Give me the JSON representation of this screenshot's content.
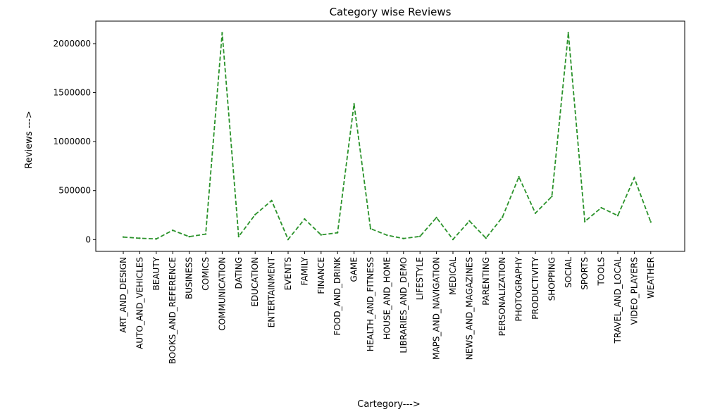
{
  "chart_data": {
    "type": "line",
    "title": "Category wise Reviews",
    "xlabel": "Cartegory--->",
    "ylabel": "Reviews --->",
    "ylim": [
      -120000,
      2230000
    ],
    "yticks": [
      0,
      500000,
      1000000,
      1500000,
      2000000
    ],
    "ytick_labels": [
      "0",
      "500000",
      "1000000",
      "1500000",
      "2000000"
    ],
    "grid": false,
    "line_style": "dashed",
    "colors": {
      "line": "#2a922a"
    },
    "categories": [
      "ART_AND_DESIGN",
      "AUTO_AND_VEHICLES",
      "BEAUTY",
      "BOOKS_AND_REFERENCE",
      "BUSINESS",
      "COMICS",
      "COMMUNICATION",
      "DATING",
      "EDUCATION",
      "ENTERTAINMENT",
      "EVENTS",
      "FAMILY",
      "FINANCE",
      "FOOD_AND_DRINK",
      "GAME",
      "HEALTH_AND_FITNESS",
      "HOUSE_AND_HOME",
      "LIBRARIES_AND_DEMO",
      "LIFESTYLE",
      "MAPS_AND_NAVIGATION",
      "MEDICAL",
      "NEWS_AND_MAGAZINES",
      "PARENTING",
      "PERSONALIZATION",
      "PHOTOGRAPHY",
      "PRODUCTIVITY",
      "SHOPPING",
      "SOCIAL",
      "SPORTS",
      "TOOLS",
      "TRAVEL_AND_LOCAL",
      "VIDEO_PLAYERS",
      "WEATHER"
    ],
    "series": [
      {
        "values": [
          26000,
          14000,
          7000,
          95000,
          30000,
          56000,
          2110000,
          31000,
          255000,
          398000,
          2000,
          210000,
          48000,
          70000,
          1385000,
          112000,
          45000,
          11000,
          33000,
          225000,
          2000,
          190000,
          15000,
          228000,
          640000,
          270000,
          440000,
          2110000,
          185000,
          325000,
          245000,
          630000,
          180000
        ]
      }
    ]
  }
}
